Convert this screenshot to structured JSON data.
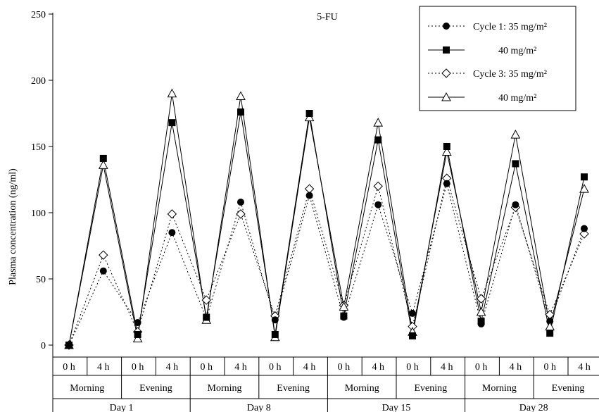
{
  "chart_data": {
    "type": "line",
    "title": "5-FU",
    "ylabel": "Plasma concentration (ng/ml)",
    "xlabel": "",
    "ylim": [
      0,
      250
    ],
    "yticks": [
      0,
      50,
      100,
      150,
      200,
      250
    ],
    "grid": false,
    "legend_position": "top-right",
    "x": [
      "0 h",
      "4 h",
      "0 h",
      "4 h",
      "0 h",
      "4 h",
      "0 h",
      "4 h",
      "0 h",
      "4 h",
      "0 h",
      "4 h",
      "0 h",
      "4 h",
      "0 h",
      "4 h"
    ],
    "sessions": [
      "Morning",
      "Evening",
      "Morning",
      "Evening",
      "Morning",
      "Evening",
      "Morning",
      "Evening"
    ],
    "days": [
      "Day 1",
      "Day 8",
      "Day 15",
      "Day 28"
    ],
    "series": [
      {
        "name": "Cycle 1:  35 mg/m²",
        "marker": "filled-circle",
        "line": "dotted",
        "values": [
          0,
          56,
          17,
          85,
          20,
          108,
          19,
          113,
          21,
          106,
          24,
          122,
          16,
          106,
          18,
          88
        ]
      },
      {
        "name": "40 mg/m²",
        "marker": "filled-square",
        "line": "solid",
        "values": [
          0,
          141,
          8,
          168,
          21,
          176,
          8,
          175,
          22,
          155,
          7,
          150,
          18,
          137,
          9,
          127
        ]
      },
      {
        "name": "Cycle 3:  35 mg/m²",
        "marker": "open-diamond",
        "line": "dotted",
        "values": [
          0,
          68,
          10,
          99,
          34,
          99,
          22,
          118,
          30,
          120,
          14,
          126,
          35,
          104,
          23,
          84
        ]
      },
      {
        "name": "40 mg/m²",
        "marker": "open-triangle",
        "line": "solid",
        "values": [
          0,
          136,
          5,
          190,
          19,
          188,
          6,
          172,
          29,
          168,
          10,
          146,
          25,
          159,
          14,
          118
        ]
      }
    ]
  }
}
